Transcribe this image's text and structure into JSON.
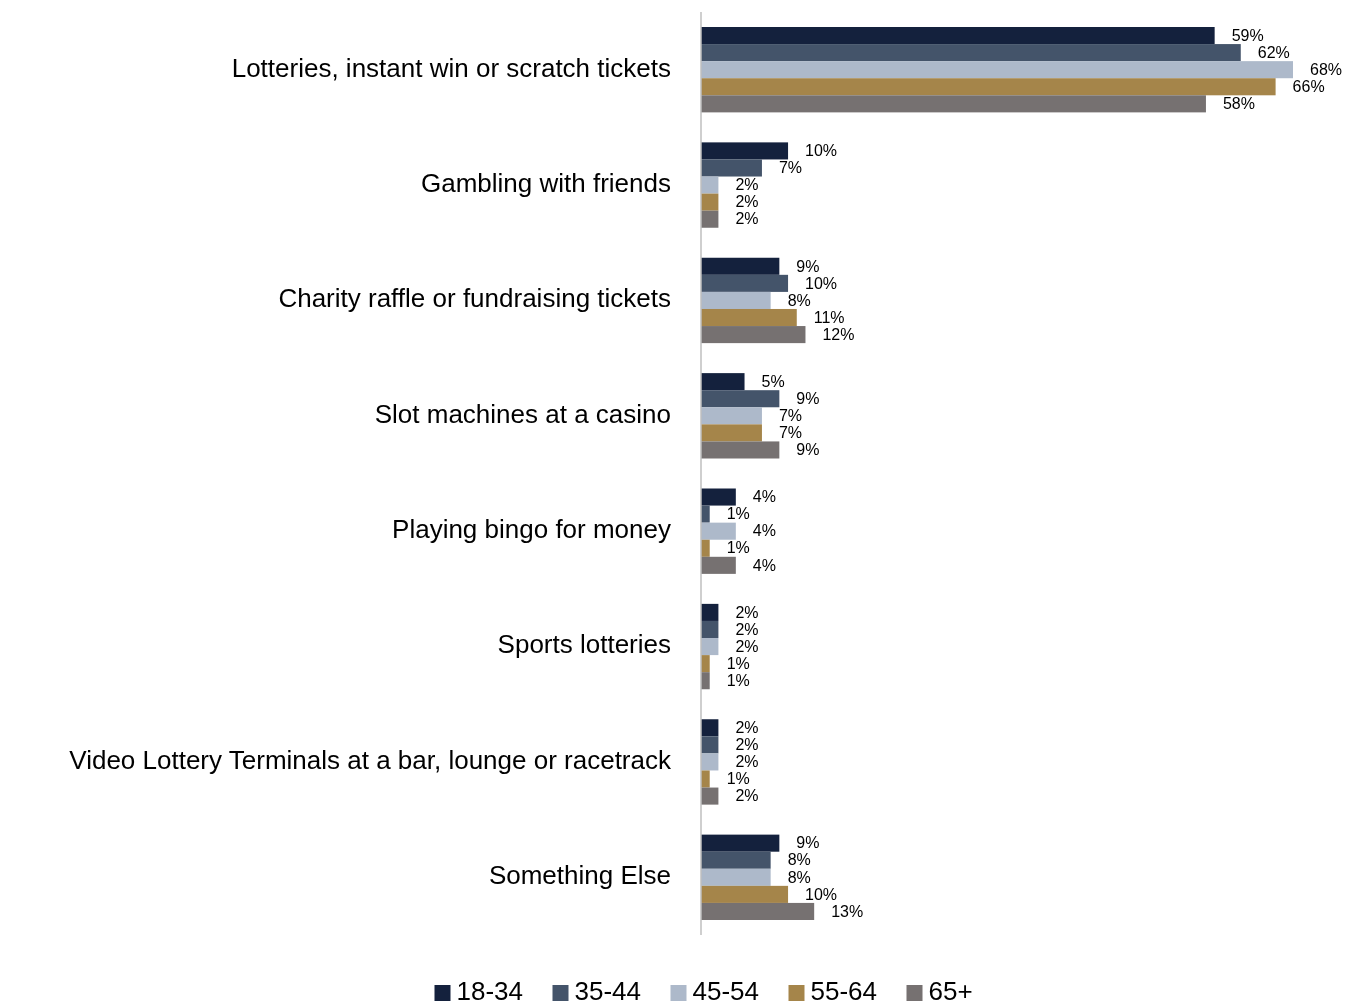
{
  "chart_data": {
    "type": "bar",
    "orientation": "horizontal",
    "legend": "bottom",
    "categories": [
      "Lotteries, instant win or scratch tickets",
      "Gambling with friends",
      "Charity raffle or fundraising tickets",
      "Slot machines at a casino",
      "Playing bingo for money",
      "Sports lotteries",
      "Video Lottery Terminals at a bar, lounge or racetrack",
      "Something Else"
    ],
    "series": [
      {
        "name": "18-34",
        "color": "#14213d",
        "values": [
          59,
          10,
          9,
          5,
          4,
          2,
          2,
          9
        ],
        "value_labels": [
          "59%",
          "10%",
          "9%",
          "5%",
          "4%",
          "2%",
          "2%",
          "9%"
        ]
      },
      {
        "name": "35-44",
        "color": "#44546a",
        "values": [
          62,
          7,
          10,
          9,
          1,
          2,
          2,
          8
        ],
        "value_labels": [
          "62%",
          "7%",
          "10%",
          "9%",
          "1%",
          "2%",
          "2%",
          "8%"
        ]
      },
      {
        "name": "45-54",
        "color": "#adb9ca",
        "values": [
          68,
          2,
          8,
          7,
          4,
          2,
          2,
          8
        ],
        "value_labels": [
          "68%",
          "2%",
          "8%",
          "7%",
          "4%",
          "2%",
          "2%",
          "8%"
        ]
      },
      {
        "name": "55-64",
        "color": "#a5854a",
        "values": [
          66,
          2,
          11,
          7,
          1,
          1,
          1,
          10
        ],
        "value_labels": [
          "66%",
          "2%",
          "11%",
          "7%",
          "1%",
          "1%",
          "1%",
          "10%"
        ]
      },
      {
        "name": "65+",
        "color": "#767171",
        "values": [
          58,
          2,
          12,
          9,
          4,
          1,
          2,
          13
        ],
        "value_labels": [
          "58%",
          "2%",
          "12%",
          "9%",
          "4%",
          "1%",
          "2%",
          "13%"
        ]
      }
    ]
  }
}
